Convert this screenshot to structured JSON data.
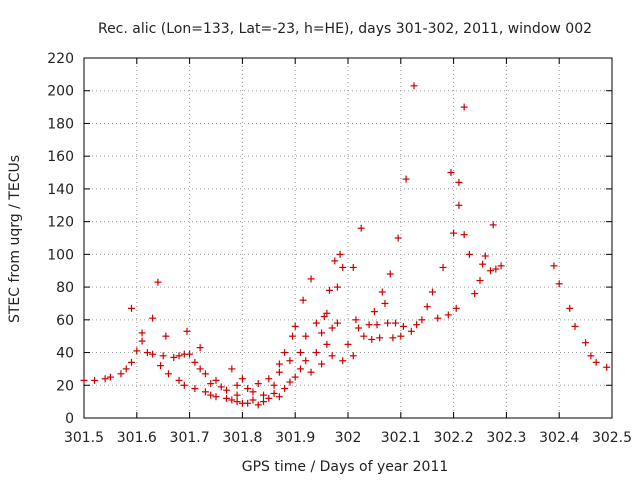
{
  "chart_data": {
    "type": "scatter",
    "title": "Rec. alic (Lon=133, Lat=-23, h=HE), days 301-302, 2011, window 002",
    "xlabel": "GPS time / Days of year 2011",
    "ylabel": "STEC from uqrg / TECUs",
    "xlim": [
      301.5,
      302.5
    ],
    "ylim": [
      0,
      220
    ],
    "xticks": [
      301.5,
      301.6,
      301.7,
      301.8,
      301.9,
      302,
      302.1,
      302.2,
      302.3,
      302.4,
      302.5
    ],
    "xtick_labels": [
      "301.5",
      "301.6",
      "301.7",
      "301.8",
      "301.9",
      "302",
      "302.1",
      "302.2",
      "302.3",
      "302.4",
      "302.5"
    ],
    "yticks": [
      0,
      20,
      40,
      60,
      80,
      100,
      120,
      140,
      160,
      180,
      200,
      220
    ],
    "ytick_labels": [
      "0",
      "20",
      "40",
      "60",
      "80",
      "100",
      "120",
      "140",
      "160",
      "180",
      "200",
      "220"
    ],
    "grid": true,
    "marker": "+",
    "color": "#cc0000",
    "points": [
      [
        301.5,
        23
      ],
      [
        301.52,
        23
      ],
      [
        301.54,
        24
      ],
      [
        301.55,
        25
      ],
      [
        301.57,
        27
      ],
      [
        301.58,
        30
      ],
      [
        301.59,
        34
      ],
      [
        301.59,
        67
      ],
      [
        301.6,
        41
      ],
      [
        301.61,
        52
      ],
      [
        301.61,
        47
      ],
      [
        301.62,
        40
      ],
      [
        301.63,
        61
      ],
      [
        301.63,
        39
      ],
      [
        301.64,
        83
      ],
      [
        301.645,
        32
      ],
      [
        301.65,
        38
      ],
      [
        301.655,
        50
      ],
      [
        301.66,
        27
      ],
      [
        301.67,
        37
      ],
      [
        301.68,
        23
      ],
      [
        301.68,
        38
      ],
      [
        301.69,
        20
      ],
      [
        301.69,
        39
      ],
      [
        301.695,
        53
      ],
      [
        301.7,
        39
      ],
      [
        301.71,
        18
      ],
      [
        301.71,
        34
      ],
      [
        301.72,
        43
      ],
      [
        301.72,
        30
      ],
      [
        301.73,
        16
      ],
      [
        301.73,
        27
      ],
      [
        301.74,
        14
      ],
      [
        301.74,
        21
      ],
      [
        301.75,
        13
      ],
      [
        301.75,
        23
      ],
      [
        301.76,
        19
      ],
      [
        301.77,
        12
      ],
      [
        301.77,
        17
      ],
      [
        301.78,
        11
      ],
      [
        301.78,
        30
      ],
      [
        301.79,
        10
      ],
      [
        301.79,
        14
      ],
      [
        301.79,
        20
      ],
      [
        301.8,
        9
      ],
      [
        301.8,
        24
      ],
      [
        301.81,
        9
      ],
      [
        301.81,
        18
      ],
      [
        301.82,
        11
      ],
      [
        301.82,
        16
      ],
      [
        301.83,
        8
      ],
      [
        301.83,
        21
      ],
      [
        301.84,
        10
      ],
      [
        301.84,
        14
      ],
      [
        301.85,
        12
      ],
      [
        301.85,
        24
      ],
      [
        301.86,
        15
      ],
      [
        301.86,
        20
      ],
      [
        301.87,
        13
      ],
      [
        301.87,
        28
      ],
      [
        301.87,
        33
      ],
      [
        301.88,
        18
      ],
      [
        301.88,
        40
      ],
      [
        301.89,
        22
      ],
      [
        301.89,
        35
      ],
      [
        301.895,
        50
      ],
      [
        301.9,
        25
      ],
      [
        301.9,
        56
      ],
      [
        301.91,
        30
      ],
      [
        301.91,
        40
      ],
      [
        301.915,
        72
      ],
      [
        301.92,
        35
      ],
      [
        301.92,
        50
      ],
      [
        301.93,
        28
      ],
      [
        301.93,
        85
      ],
      [
        301.94,
        40
      ],
      [
        301.94,
        58
      ],
      [
        301.95,
        33
      ],
      [
        301.95,
        52
      ],
      [
        301.955,
        62
      ],
      [
        301.96,
        45
      ],
      [
        301.96,
        64
      ],
      [
        301.965,
        78
      ],
      [
        301.97,
        38
      ],
      [
        301.97,
        55
      ],
      [
        301.975,
        96
      ],
      [
        301.98,
        80
      ],
      [
        301.98,
        58
      ],
      [
        301.985,
        100
      ],
      [
        301.99,
        35
      ],
      [
        301.99,
        92
      ],
      [
        302.0,
        45
      ],
      [
        302.01,
        38
      ],
      [
        302.01,
        92
      ],
      [
        302.015,
        60
      ],
      [
        302.02,
        55
      ],
      [
        302.025,
        116
      ],
      [
        302.03,
        50
      ],
      [
        302.04,
        57
      ],
      [
        302.045,
        48
      ],
      [
        302.05,
        65
      ],
      [
        302.055,
        57
      ],
      [
        302.06,
        49
      ],
      [
        302.065,
        77
      ],
      [
        302.07,
        70
      ],
      [
        302.075,
        58
      ],
      [
        302.08,
        88
      ],
      [
        302.085,
        49
      ],
      [
        302.09,
        58
      ],
      [
        302.095,
        110
      ],
      [
        302.1,
        50
      ],
      [
        302.105,
        56
      ],
      [
        302.11,
        146
      ],
      [
        302.12,
        53
      ],
      [
        302.125,
        203
      ],
      [
        302.13,
        57
      ],
      [
        302.14,
        60
      ],
      [
        302.15,
        68
      ],
      [
        302.16,
        77
      ],
      [
        302.17,
        61
      ],
      [
        302.18,
        92
      ],
      [
        302.19,
        63
      ],
      [
        302.195,
        150
      ],
      [
        302.2,
        113
      ],
      [
        302.205,
        67
      ],
      [
        302.21,
        144
      ],
      [
        302.21,
        130
      ],
      [
        302.22,
        190
      ],
      [
        302.22,
        112
      ],
      [
        302.23,
        100
      ],
      [
        302.24,
        76
      ],
      [
        302.25,
        84
      ],
      [
        302.255,
        94
      ],
      [
        302.26,
        99
      ],
      [
        302.27,
        90
      ],
      [
        302.275,
        118
      ],
      [
        302.28,
        91
      ],
      [
        302.29,
        93
      ],
      [
        302.39,
        93
      ],
      [
        302.4,
        82
      ],
      [
        302.42,
        67
      ],
      [
        302.43,
        56
      ],
      [
        302.45,
        46
      ],
      [
        302.46,
        38
      ],
      [
        302.47,
        34
      ],
      [
        302.49,
        31
      ]
    ]
  }
}
